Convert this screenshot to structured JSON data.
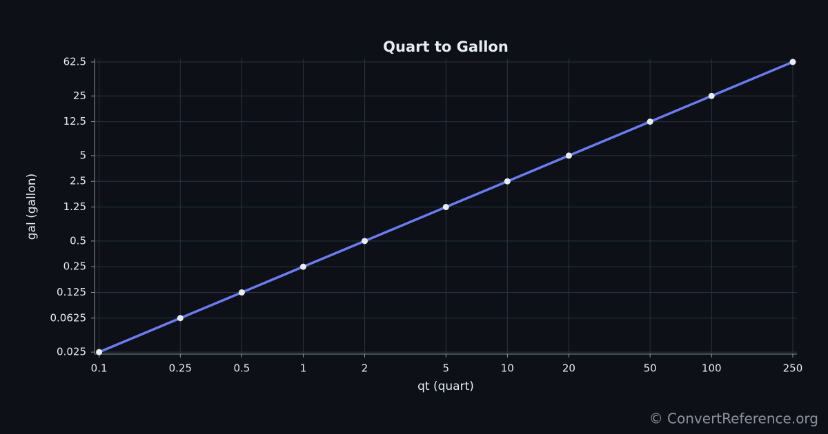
{
  "chart_data": {
    "type": "line",
    "title": "Quart to Gallon",
    "x_label": "qt (quart)",
    "y_label": "gal (gallon)",
    "x": [
      0.1,
      0.25,
      0.5,
      1,
      2,
      5,
      10,
      20,
      50,
      100,
      250
    ],
    "series": [
      {
        "name": "Quart to Gallon",
        "color": "#6b7cf0",
        "marker_color": "#e6edf3",
        "values": [
          0.025,
          0.0625,
          0.125,
          0.25,
          0.5,
          1.25,
          2.5,
          5,
          12.5,
          25,
          62.5
        ]
      }
    ],
    "x_scale": "log",
    "y_scale": "log",
    "xlim": [
      0.095,
      262
    ],
    "ylim": [
      0.0237,
      68.5
    ],
    "xticks": [
      0.1,
      0.25,
      0.5,
      1,
      2,
      5,
      10,
      20,
      50,
      100,
      250
    ],
    "yticks": [
      0.025,
      0.0625,
      0.125,
      0.25,
      0.5,
      1.25,
      2.5,
      5,
      12.5,
      25,
      62.5
    ],
    "grid": true
  },
  "watermark": "© ConvertReference.org"
}
